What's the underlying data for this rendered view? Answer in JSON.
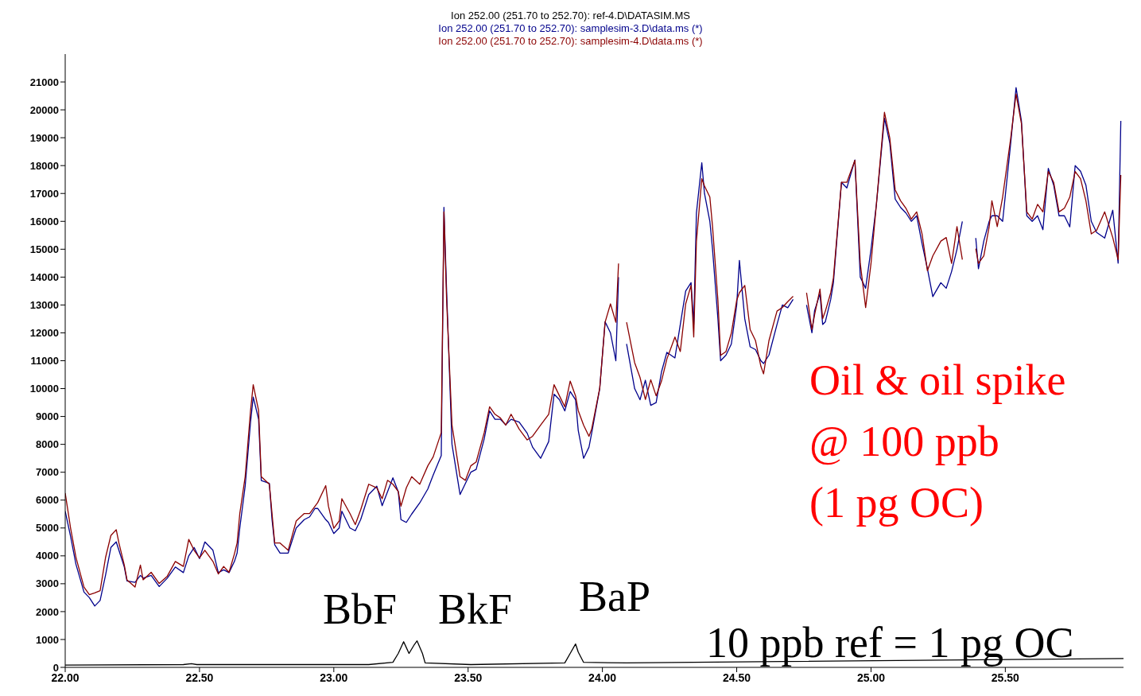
{
  "chart_data": {
    "type": "line",
    "legend": "top",
    "x": [
      22.0,
      22.02,
      22.04,
      22.07,
      22.09,
      22.11,
      22.13,
      22.15,
      22.17,
      22.19,
      22.2,
      22.22,
      22.23,
      22.26,
      22.28,
      22.29,
      22.32,
      22.35,
      22.38,
      22.41,
      22.44,
      22.46,
      22.48,
      22.5,
      22.52,
      22.55,
      22.57,
      22.59,
      22.61,
      22.63,
      22.64,
      22.65,
      22.67,
      22.69,
      22.7,
      22.72,
      22.73,
      22.76,
      22.77,
      22.78,
      22.8,
      22.83,
      22.86,
      22.89,
      22.91,
      22.93,
      22.94,
      22.97,
      22.98,
      23.0,
      23.02,
      23.03,
      23.06,
      23.08,
      23.1,
      23.13,
      23.16,
      23.18,
      23.2,
      23.22,
      23.24,
      23.25,
      23.27,
      23.29,
      23.32,
      23.35,
      23.37,
      23.4,
      23.41,
      23.42,
      23.44,
      23.47,
      23.49,
      23.51,
      23.53,
      23.56,
      23.58,
      23.6,
      23.62,
      23.64,
      23.66,
      23.69,
      23.72,
      23.74,
      23.77,
      23.8,
      23.82,
      23.84,
      23.86,
      23.88,
      23.9,
      23.91,
      23.93,
      23.95,
      23.96,
      23.99,
      24.01,
      24.03,
      24.05,
      24.06,
      24.07,
      24.09,
      24.12,
      24.14,
      24.16,
      24.18,
      24.2,
      24.22,
      24.24,
      24.27,
      24.29,
      24.31,
      24.33,
      24.34,
      24.35,
      24.37,
      24.38,
      24.4,
      24.41,
      24.43,
      24.44,
      24.46,
      24.48,
      24.5,
      24.51,
      24.53,
      24.55,
      24.57,
      24.59,
      24.6,
      24.62,
      24.65,
      24.67,
      24.69,
      24.71,
      24.73,
      24.74,
      24.76,
      24.78,
      24.79,
      24.81,
      24.82,
      24.83,
      24.85,
      24.86,
      24.89,
      24.91,
      24.94,
      24.96,
      24.98,
      25.0,
      25.02,
      25.05,
      25.07,
      25.09,
      25.11,
      25.13,
      25.15,
      25.17,
      25.19,
      25.21,
      25.23,
      25.26,
      25.28,
      25.3,
      25.32,
      25.34,
      25.37,
      25.39,
      25.4,
      25.42,
      25.44,
      25.45,
      25.47,
      25.49,
      25.52,
      25.54,
      25.56,
      25.58,
      25.6,
      25.62,
      25.64,
      25.66,
      25.68,
      25.7,
      25.72,
      25.74,
      25.76,
      25.78,
      25.8,
      25.82,
      25.84,
      25.87,
      25.9,
      25.92,
      25.93
    ],
    "series": [
      {
        "name": "Ion 252.00 (251.70 to 252.70): ref-4.D\\DATASIM.MS",
        "color": "#000000",
        "x": [
          22.0,
          22.44,
          22.47,
          22.49,
          23.13,
          23.22,
          23.24,
          23.26,
          23.27,
          23.28,
          23.3,
          23.31,
          23.33,
          23.34,
          23.51,
          23.86,
          23.88,
          23.9,
          23.91,
          23.93,
          24.09,
          24.67,
          25.26,
          25.94
        ],
        "values": [
          80,
          100,
          130,
          100,
          100,
          180,
          500,
          920,
          710,
          500,
          820,
          950,
          500,
          160,
          100,
          160,
          500,
          840,
          550,
          180,
          160,
          210,
          260,
          320
        ]
      },
      {
        "name": "Ion 252.00 (251.70 to 252.70): samplesim-3.D\\data.ms (*)",
        "color": "#00008b",
        "values": [
          5600,
          4700,
          3700,
          2700,
          2500,
          2200,
          2400,
          3300,
          4300,
          4500,
          4200,
          3600,
          3100,
          3050,
          3300,
          3200,
          3300,
          2900,
          3200,
          3600,
          3400,
          4000,
          4300,
          3900,
          4500,
          4200,
          3400,
          3500,
          3400,
          3800,
          4100,
          5000,
          6500,
          8800,
          9700,
          8900,
          6700,
          6600,
          5300,
          4400,
          4100,
          4100,
          5000,
          5300,
          5400,
          5700,
          5700,
          5300,
          5200,
          4800,
          5000,
          5600,
          5000,
          4900,
          5300,
          6200,
          6500,
          5800,
          6300,
          6800,
          6300,
          5300,
          5200,
          5500,
          5900,
          6400,
          6900,
          7600,
          16500,
          13500,
          8000,
          6200,
          6600,
          7000,
          7100,
          8200,
          9200,
          8900,
          8900,
          8700,
          8900,
          8800,
          8400,
          7900,
          7500,
          8100,
          9800,
          9600,
          9200,
          9900,
          9600,
          8500,
          7500,
          7900,
          8400,
          10000,
          12400,
          12000,
          11000,
          14000,
          null,
          11600,
          10000,
          9600,
          10300,
          9400,
          9500,
          10600,
          11300,
          11100,
          12300,
          13500,
          13800,
          12300,
          16300,
          18100,
          17000,
          16000,
          15000,
          12500,
          11000,
          11200,
          11600,
          13000,
          14600,
          12500,
          11500,
          11400,
          11000,
          10900,
          11200,
          12300,
          13000,
          12900,
          13200,
          null,
          null,
          13000,
          12000,
          12800,
          13400,
          12300,
          12400,
          13200,
          13800,
          17400,
          17200,
          18200,
          14000,
          13600,
          15000,
          16600,
          19700,
          18800,
          16800,
          16500,
          16300,
          16000,
          16200,
          15200,
          14300,
          13300,
          13800,
          13600,
          14200,
          15000,
          16000,
          null,
          15400,
          14300,
          15300,
          16000,
          16200,
          16200,
          16000,
          18800,
          20800,
          19600,
          16200,
          16000,
          16200,
          15700,
          17900,
          17300,
          16200,
          16200,
          15800,
          18000,
          17800,
          17300,
          16000,
          15600,
          15400,
          16400,
          14500,
          19600
        ]
      },
      {
        "name": "Ion 252.00 (251.70 to 252.70): samplesim-4.D\\data.ms (*)",
        "color": "#8b0000",
        "values": [
          6250,
          5000,
          3950,
          2880,
          2610,
          2670,
          2750,
          3930,
          4730,
          4940,
          4460,
          3670,
          3140,
          2880,
          3670,
          3140,
          3410,
          3010,
          3270,
          3800,
          3620,
          4590,
          4200,
          3930,
          4200,
          3800,
          3350,
          3620,
          3410,
          4070,
          4460,
          5520,
          6840,
          9210,
          10140,
          9210,
          6840,
          6570,
          5520,
          4460,
          4460,
          4200,
          5250,
          5520,
          5520,
          5780,
          5910,
          6520,
          5780,
          4990,
          5250,
          6050,
          5520,
          5120,
          5650,
          6570,
          6440,
          6050,
          6710,
          6570,
          6310,
          5780,
          6440,
          6840,
          6570,
          7230,
          7550,
          8420,
          16340,
          13170,
          8690,
          6840,
          6710,
          7230,
          7370,
          8420,
          9350,
          9080,
          8950,
          8690,
          9080,
          8550,
          8160,
          8290,
          8690,
          9080,
          10140,
          9740,
          9350,
          10270,
          9740,
          9210,
          8690,
          8290,
          8550,
          10010,
          12380,
          13040,
          12380,
          14490,
          null,
          12380,
          10930,
          10400,
          9610,
          10320,
          9740,
          10270,
          11060,
          11850,
          11330,
          13040,
          13700,
          11850,
          15290,
          17530,
          17270,
          16870,
          15810,
          13170,
          11190,
          11330,
          11990,
          13170,
          13440,
          13700,
          12120,
          11720,
          10800,
          10530,
          11720,
          12780,
          12910,
          13120,
          13310,
          null,
          null,
          13440,
          12120,
          12650,
          13570,
          12510,
          12780,
          13440,
          13970,
          17400,
          17400,
          18190,
          14490,
          12910,
          14490,
          16610,
          19910,
          18980,
          17130,
          16740,
          16470,
          16080,
          16340,
          15550,
          14230,
          14760,
          15290,
          15420,
          14490,
          15810,
          14630,
          null,
          15020,
          14490,
          14760,
          15810,
          16740,
          15810,
          16870,
          18980,
          20570,
          19510,
          16340,
          16080,
          16610,
          16340,
          17790,
          17400,
          16340,
          16470,
          16870,
          17790,
          17530,
          16740,
          15550,
          15680,
          16340,
          15420,
          14630,
          17660
        ]
      }
    ],
    "xlim": [
      22,
      25.94
    ],
    "xticks": [
      {
        "value": 22,
        "label": "22.00"
      },
      {
        "value": 22.5,
        "label": "22.50"
      },
      {
        "value": 23,
        "label": "23.00"
      },
      {
        "value": 23.5,
        "label": "23.50"
      },
      {
        "value": 24,
        "label": "24.00"
      },
      {
        "value": 24.5,
        "label": "24.50"
      },
      {
        "value": 25,
        "label": "25.00"
      },
      {
        "value": 25.5,
        "label": "25.50"
      }
    ],
    "ylim": [
      0,
      22000
    ],
    "yticks": [
      0,
      1000,
      2000,
      3000,
      4000,
      5000,
      6000,
      7000,
      8000,
      9000,
      10000,
      11000,
      12000,
      13000,
      14000,
      15000,
      16000,
      17000,
      18000,
      19000,
      20000,
      21000
    ],
    "annotations": [
      "BbF",
      "BkF",
      "BaP",
      "Oil & oil spike",
      "@ 100 ppb",
      "(1 pg OC)",
      "10 ppb ref = 1 pg OC"
    ]
  }
}
